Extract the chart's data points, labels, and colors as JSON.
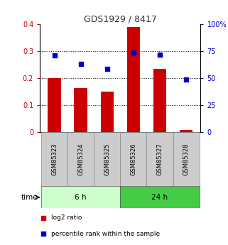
{
  "title": "GDS1929 / 8417",
  "samples": [
    "GSM85323",
    "GSM85324",
    "GSM85325",
    "GSM85326",
    "GSM85327",
    "GSM85328"
  ],
  "log2_ratio": [
    0.2,
    0.165,
    0.15,
    0.39,
    0.235,
    0.01
  ],
  "percentile_rank": [
    71.25,
    63.75,
    58.75,
    73.75,
    71.75,
    48.75
  ],
  "bar_color": "#cc0000",
  "dot_color": "#0000cc",
  "left_ylim": [
    0,
    0.4
  ],
  "right_ylim": [
    0,
    100
  ],
  "left_yticks": [
    0,
    0.1,
    0.2,
    0.3,
    0.4
  ],
  "left_yticklabels": [
    "0",
    "0.1",
    "0.2",
    "0.3",
    "0.4"
  ],
  "right_yticks": [
    0,
    25,
    50,
    75,
    100
  ],
  "right_yticklabels": [
    "0",
    "25",
    "50",
    "75",
    "100%"
  ],
  "groups": [
    {
      "label": "6 h",
      "indices": [
        0,
        1,
        2
      ],
      "color": "#ccffcc"
    },
    {
      "label": "24 h",
      "indices": [
        3,
        4,
        5
      ],
      "color": "#44cc44"
    }
  ],
  "time_label": "time",
  "legend_log2": "log2 ratio",
  "legend_pct": "percentile rank within the sample",
  "title_color": "#333333",
  "left_axis_color": "#cc0000",
  "right_axis_color": "#0000cc",
  "grid_color": "#000000",
  "bar_width": 0.5,
  "dot_size": 25,
  "sample_box_color": "#cccccc",
  "sample_box_edge_color": "#888888"
}
